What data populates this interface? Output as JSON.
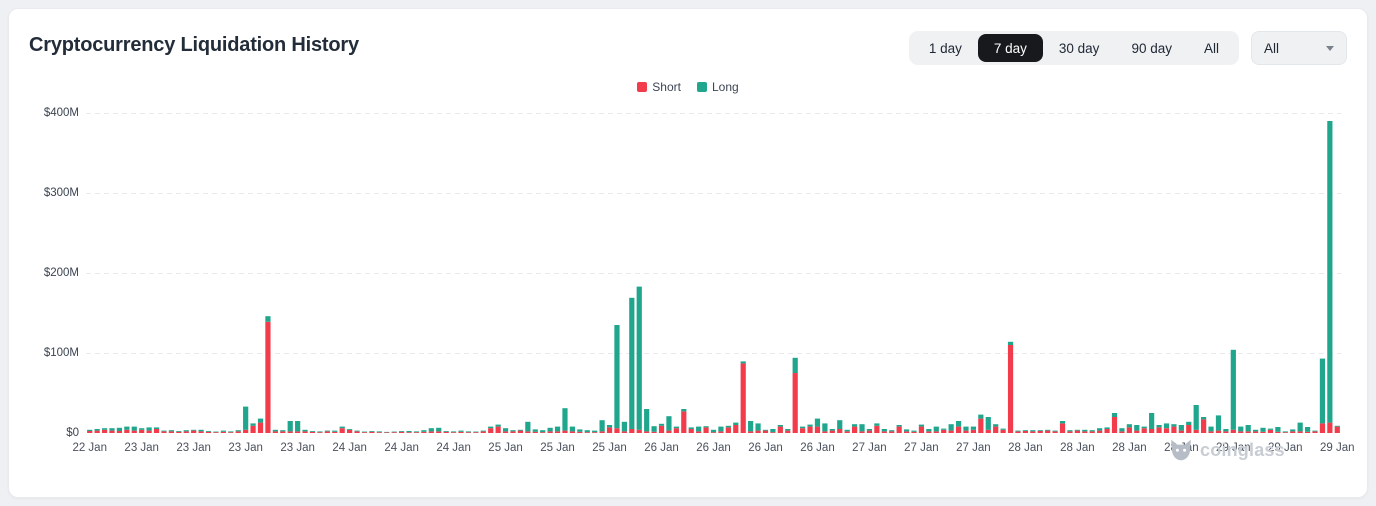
{
  "header": {
    "title": "Cryptocurrency Liquidation History",
    "range_buttons": [
      {
        "label": "1 day",
        "active": false
      },
      {
        "label": "7 day",
        "active": true
      },
      {
        "label": "30 day",
        "active": false
      },
      {
        "label": "90 day",
        "active": false
      },
      {
        "label": "All",
        "active": false
      }
    ],
    "symbol_dropdown": {
      "value": "All"
    }
  },
  "legend": [
    {
      "label": "Short",
      "color": "#f23c4b"
    },
    {
      "label": "Long",
      "color": "#1fa68d"
    }
  ],
  "watermark": {
    "text": "coinglass"
  },
  "chart_data": {
    "type": "bar",
    "stacked": true,
    "unit": "USD millions",
    "title": "Cryptocurrency Liquidation History",
    "ylabel_ticks": [
      "$0",
      "$100M",
      "$200M",
      "$300M",
      "$400M"
    ],
    "ylim": [
      0,
      400
    ],
    "grid": "dashed-horizontal",
    "grid_color": "#e8eaed",
    "bars_per_label": 7,
    "x_tick_labels": [
      "22 Jan",
      "23 Jan",
      "23 Jan",
      "23 Jan",
      "23 Jan",
      "24 Jan",
      "24 Jan",
      "24 Jan",
      "25 Jan",
      "25 Jan",
      "25 Jan",
      "26 Jan",
      "26 Jan",
      "26 Jan",
      "26 Jan",
      "27 Jan",
      "27 Jan",
      "27 Jan",
      "28 Jan",
      "28 Jan",
      "28 Jan",
      "28 Jan",
      "29 Jan",
      "29 Jan",
      "29 Jan"
    ],
    "series": [
      {
        "name": "Short",
        "color": "#f23c4b",
        "values": [
          2.5,
          3,
          4,
          3,
          2.5,
          4,
          3,
          4,
          3,
          5,
          2,
          2,
          1.5,
          2,
          3,
          2,
          1.5,
          1,
          1.5,
          1,
          2,
          4,
          9,
          13,
          139,
          2,
          2,
          2,
          2,
          2,
          1.5,
          1,
          2,
          1.5,
          6,
          4,
          2,
          1,
          1.5,
          1,
          0.8,
          1,
          1.5,
          1,
          1,
          1.5,
          2,
          2,
          1.5,
          1,
          1.5,
          1,
          1,
          2,
          6,
          8,
          2,
          2,
          3,
          2,
          1.5,
          1,
          2,
          2,
          3,
          2,
          1.5,
          1,
          1,
          2,
          7,
          6,
          2,
          5,
          4,
          2,
          1.5,
          9,
          3,
          6,
          27,
          5,
          2,
          7,
          1,
          2,
          7,
          10,
          87,
          2,
          3,
          3,
          1,
          8,
          3,
          75,
          6,
          8,
          8,
          2,
          3,
          5,
          2,
          8,
          2,
          3,
          9,
          2,
          2,
          8,
          2,
          1.5,
          8,
          2,
          2,
          4,
          3,
          8,
          3,
          4,
          18,
          4,
          8,
          4,
          110,
          2,
          2.5,
          2,
          2.5,
          3,
          2,
          12,
          2,
          3,
          2,
          2,
          3,
          5,
          20,
          2,
          7,
          3,
          6,
          5,
          7,
          6,
          8,
          3,
          10,
          4,
          17,
          2,
          3,
          2,
          4,
          2,
          2,
          2,
          1.5,
          4,
          1.5,
          1,
          2,
          2,
          1.5,
          2,
          12,
          13,
          8
        ]
      },
      {
        "name": "Long",
        "color": "#1fa68d",
        "values": [
          1.5,
          2,
          2,
          3,
          4,
          4,
          5,
          2,
          4,
          2,
          1,
          1.5,
          1,
          1.5,
          1,
          2,
          1,
          0.8,
          1.5,
          1,
          1.5,
          29,
          3,
          5,
          7,
          2,
          1.5,
          13,
          13,
          2,
          1,
          1,
          1,
          1.5,
          2,
          1,
          1,
          0.8,
          1,
          1,
          0.6,
          0.8,
          1,
          1.5,
          1,
          2,
          4,
          4.5,
          1,
          1,
          1.5,
          1,
          0.8,
          1,
          2,
          2.5,
          4,
          1.5,
          1,
          12,
          3,
          2.5,
          4.5,
          6,
          28,
          6,
          3,
          2.5,
          2,
          14,
          3,
          129,
          12,
          164,
          179,
          28,
          7,
          2.5,
          18,
          2,
          3,
          2,
          6,
          1.5,
          3,
          6,
          2,
          3,
          2.5,
          13,
          9,
          1,
          4,
          2,
          2,
          19,
          2,
          2.5,
          10,
          10,
          2,
          11,
          2,
          3,
          9,
          2,
          3,
          3,
          1.5,
          2,
          2.5,
          1.5,
          2.5,
          3,
          6,
          1.5,
          8,
          7,
          5,
          4,
          5,
          16,
          3,
          1.5,
          4,
          1,
          1,
          1.5,
          1,
          1,
          1,
          3,
          1.5,
          1,
          2,
          1.5,
          3,
          2,
          5,
          4,
          4,
          7,
          2,
          20,
          3,
          6,
          3,
          7,
          4,
          31,
          3,
          6,
          19,
          3,
          100,
          6,
          8,
          2,
          5,
          1.5,
          6,
          1,
          2.5,
          11,
          6,
          1,
          81,
          377,
          1
        ]
      }
    ]
  }
}
